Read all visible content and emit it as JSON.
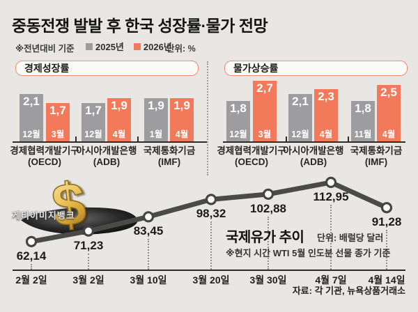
{
  "header": {
    "title": "중동전쟁 발발 후 한국 성장률·물가 전망",
    "basis_note": "※전년대비 기준",
    "legend": [
      {
        "label": "2025년",
        "color": "#9d9da0"
      },
      {
        "label": "2026년",
        "color": "#f3795b"
      }
    ],
    "unit": "단위: %"
  },
  "colors": {
    "background": "#e9e7e4",
    "bar_2025": "#9d9da0",
    "bar_2026": "#f3795b",
    "accent_border": "#ef8e74",
    "line": "#4a4a48",
    "axis": "#2e2c2a"
  },
  "watermark": "게티이미지뱅크",
  "source": "자료: 각 기관, 뉴욕상품거래소",
  "chart_data": [
    {
      "type": "bar",
      "title": "경제성장률",
      "unit": "%",
      "series": [
        "2025년",
        "2026년"
      ],
      "ylim": [
        0,
        3
      ],
      "groups": [
        {
          "name": "경제협력개발기구",
          "abbr": "(OECD)",
          "bars": [
            {
              "month": "12월",
              "value": 2.1,
              "label": "2,1"
            },
            {
              "month": "3월",
              "value": 1.7,
              "label": "1,7"
            }
          ]
        },
        {
          "name": "아시아개발은행",
          "abbr": "(ADB)",
          "bars": [
            {
              "month": "12월",
              "value": 1.7,
              "label": "1,7"
            },
            {
              "month": "4월",
              "value": 1.9,
              "label": "1,9"
            }
          ]
        },
        {
          "name": "국제통화기금",
          "abbr": "(IMF)",
          "bars": [
            {
              "month": "1월",
              "value": 1.9,
              "label": "1,9"
            },
            {
              "month": "4월",
              "value": 1.9,
              "label": "1,9"
            }
          ]
        }
      ]
    },
    {
      "type": "bar",
      "title": "물가상승률",
      "unit": "%",
      "series": [
        "2025년",
        "2026년"
      ],
      "ylim": [
        0,
        3
      ],
      "groups": [
        {
          "name": "경제협력개발기구",
          "abbr": "(OECD)",
          "bars": [
            {
              "month": "12월",
              "value": 1.8,
              "label": "1,8"
            },
            {
              "month": "3월",
              "value": 2.7,
              "label": "2,7"
            }
          ]
        },
        {
          "name": "아시아개발은행",
          "abbr": "(ADB)",
          "bars": [
            {
              "month": "12월",
              "value": 2.1,
              "label": "2,1"
            },
            {
              "month": "4월",
              "value": 2.3,
              "label": "2,3"
            }
          ]
        },
        {
          "name": "국제통화기금",
          "abbr": "(IMF)",
          "bars": [
            {
              "month": "11월",
              "value": 1.8,
              "label": "1,8"
            },
            {
              "month": "4월",
              "value": 2.5,
              "label": "2,5"
            }
          ]
        }
      ]
    },
    {
      "type": "line",
      "title": "국제유가 추이",
      "unit_label": "단위: 배럴당 달러",
      "note": "※현지 시간 WTI 5월 인도분 선물 종가 기준",
      "x": [
        "2월 2일",
        "3월 2일",
        "3월 10일",
        "3월 20일",
        "3월 30일",
        "4월 7일",
        "4월 14일"
      ],
      "values": [
        62.14,
        71.23,
        83.45,
        98.32,
        102.88,
        112.95,
        91.28
      ],
      "labels": [
        "62,14",
        "71,23",
        "83,45",
        "98,32",
        "102,88",
        "112,95",
        "91,28"
      ]
    }
  ]
}
